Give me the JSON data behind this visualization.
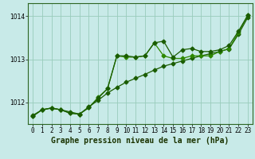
{
  "title": "Graphe pression niveau de la mer (hPa)",
  "xlabel_ticks": [
    0,
    1,
    2,
    3,
    4,
    5,
    6,
    7,
    8,
    9,
    10,
    11,
    12,
    13,
    14,
    15,
    16,
    17,
    18,
    19,
    20,
    21,
    22,
    23
  ],
  "yticks": [
    1012,
    1013,
    1014
  ],
  "ylim": [
    1011.5,
    1014.3
  ],
  "xlim": [
    -0.5,
    23.5
  ],
  "bg_color": "#c8eae8",
  "grid_color": "#99ccbb",
  "line_color1": "#1a5c00",
  "line_color2": "#2d8800",
  "line1": [
    1011.7,
    1011.83,
    1011.87,
    1011.83,
    1011.78,
    1011.73,
    1011.9,
    1012.05,
    1012.22,
    1012.35,
    1012.47,
    1012.56,
    1012.65,
    1012.75,
    1012.84,
    1012.9,
    1012.96,
    1013.02,
    1013.08,
    1013.13,
    1013.18,
    1013.24,
    1013.58,
    1013.97
  ],
  "line2": [
    1011.68,
    1011.83,
    1011.87,
    1011.83,
    1011.75,
    1011.73,
    1011.88,
    1012.12,
    1012.32,
    1013.08,
    1013.05,
    1013.05,
    1013.08,
    1013.38,
    1013.08,
    1013.02,
    1013.02,
    1013.08,
    1013.08,
    1013.08,
    1013.18,
    1013.25,
    1013.62,
    1014.02
  ],
  "line3": [
    1011.68,
    1011.83,
    1011.87,
    1011.83,
    1011.75,
    1011.73,
    1011.88,
    1012.1,
    1012.32,
    1013.08,
    1013.08,
    1013.05,
    1013.08,
    1013.38,
    1013.42,
    1013.05,
    1013.22,
    1013.25,
    1013.18,
    1013.18,
    1013.22,
    1013.32,
    1013.65,
    1014.02
  ],
  "marker": "D",
  "markersize": 2.5,
  "linewidth": 0.9,
  "title_fontsize": 7,
  "tick_fontsize": 5.5
}
